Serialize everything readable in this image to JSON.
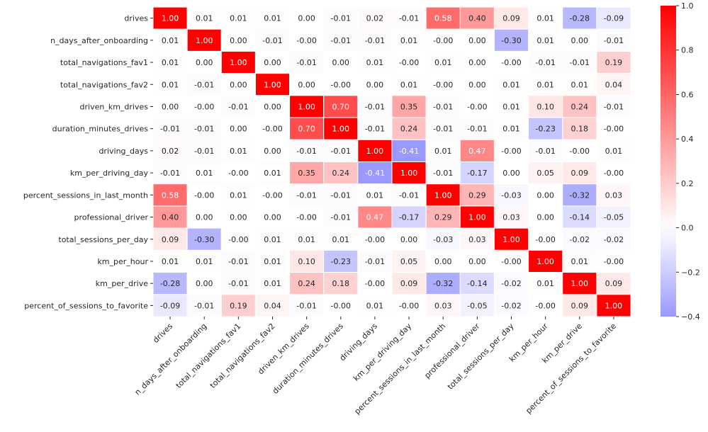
{
  "chart_data": {
    "type": "heatmap",
    "title": "",
    "xlabel": "",
    "ylabel": "",
    "rows": [
      "drives",
      "n_days_after_onboarding",
      "total_navigations_fav1",
      "total_navigations_fav2",
      "driven_km_drives",
      "duration_minutes_drives",
      "driving_days",
      "km_per_driving_day",
      "percent_sessions_in_last_month",
      "professional_driver",
      "total_sessions_per_day",
      "km_per_hour",
      "km_per_drive",
      "percent_of_sessions_to_favorite"
    ],
    "columns": [
      "drives",
      "n_days_after_onboarding",
      "total_navigations_fav1",
      "total_navigations_fav2",
      "driven_km_drives",
      "duration_minutes_drives",
      "driving_days",
      "km_per_driving_day",
      "percent_sessions_in_last_month",
      "professional_driver",
      "total_sessions_per_day",
      "km_per_hour",
      "km_per_drive",
      "percent_of_sessions_to_favorite"
    ],
    "values": [
      [
        1.0,
        0.01,
        0.01,
        0.01,
        0.0,
        -0.01,
        0.02,
        -0.01,
        0.58,
        0.4,
        0.09,
        0.01,
        -0.28,
        -0.09
      ],
      [
        0.01,
        1.0,
        0.0,
        -0.01,
        -0.0,
        -0.01,
        -0.01,
        0.01,
        -0.0,
        0.0,
        -0.3,
        0.01,
        0.0,
        -0.01
      ],
      [
        0.01,
        0.0,
        1.0,
        0.0,
        -0.01,
        0.0,
        0.01,
        -0.0,
        0.01,
        0.0,
        -0.0,
        -0.01,
        -0.01,
        0.19
      ],
      [
        0.01,
        -0.01,
        0.0,
        1.0,
        0.0,
        -0.0,
        0.0,
        0.01,
        -0.0,
        0.0,
        0.01,
        0.01,
        0.01,
        0.04
      ],
      [
        0.0,
        -0.0,
        -0.01,
        0.0,
        1.0,
        0.7,
        -0.01,
        0.35,
        -0.01,
        -0.0,
        0.01,
        0.1,
        0.24,
        -0.01
      ],
      [
        -0.01,
        -0.01,
        0.0,
        -0.0,
        0.7,
        1.0,
        -0.01,
        0.24,
        -0.01,
        -0.01,
        0.01,
        -0.23,
        0.18,
        -0.0
      ],
      [
        0.02,
        -0.01,
        0.01,
        0.0,
        -0.01,
        -0.01,
        1.0,
        -0.41,
        0.01,
        0.47,
        -0.0,
        -0.01,
        -0.0,
        0.01
      ],
      [
        -0.01,
        0.01,
        -0.0,
        0.01,
        0.35,
        0.24,
        -0.41,
        1.0,
        -0.01,
        -0.17,
        0.0,
        0.05,
        0.09,
        -0.0
      ],
      [
        0.58,
        -0.0,
        0.01,
        -0.0,
        -0.01,
        -0.01,
        0.01,
        -0.01,
        1.0,
        0.29,
        -0.03,
        0.0,
        -0.32,
        0.03
      ],
      [
        0.4,
        0.0,
        0.0,
        0.0,
        -0.0,
        -0.01,
        0.47,
        -0.17,
        0.29,
        1.0,
        0.03,
        0.0,
        -0.14,
        -0.05
      ],
      [
        0.09,
        -0.3,
        -0.0,
        0.01,
        0.01,
        0.01,
        -0.0,
        0.0,
        -0.03,
        0.03,
        1.0,
        -0.0,
        -0.02,
        -0.02
      ],
      [
        0.01,
        0.01,
        -0.01,
        0.01,
        0.1,
        -0.23,
        -0.01,
        0.05,
        0.0,
        0.0,
        -0.0,
        1.0,
        0.01,
        -0.0
      ],
      [
        -0.28,
        0.0,
        -0.01,
        0.01,
        0.24,
        0.18,
        -0.0,
        0.09,
        -0.32,
        -0.14,
        -0.02,
        0.01,
        1.0,
        0.09
      ],
      [
        -0.09,
        -0.01,
        0.19,
        0.04,
        -0.01,
        -0.0,
        0.01,
        -0.0,
        0.03,
        -0.05,
        -0.02,
        -0.0,
        0.09,
        1.0
      ]
    ],
    "value_format": "0.00",
    "colormap": "bwr",
    "colormap_center": 0.0,
    "vmin": -0.4,
    "vmax": 1.0,
    "colors": {
      "negative_end": "#9999ff",
      "center": "#ffffff",
      "positive_end": "#ff0000",
      "light_text": "#ffffff",
      "dark_text": "#262626"
    },
    "colorbar": {
      "placement": "right",
      "ticks": [
        1.0,
        0.8,
        0.6,
        0.4,
        0.2,
        0.0,
        -0.2,
        -0.4
      ],
      "tick_labels": [
        "1.0",
        "0.8",
        "0.6",
        "0.4",
        "0.2",
        "0.0",
        "−0.2",
        "−0.4"
      ]
    },
    "grid": false,
    "cell_borders": "white",
    "xtick_rotation_deg": 45
  }
}
